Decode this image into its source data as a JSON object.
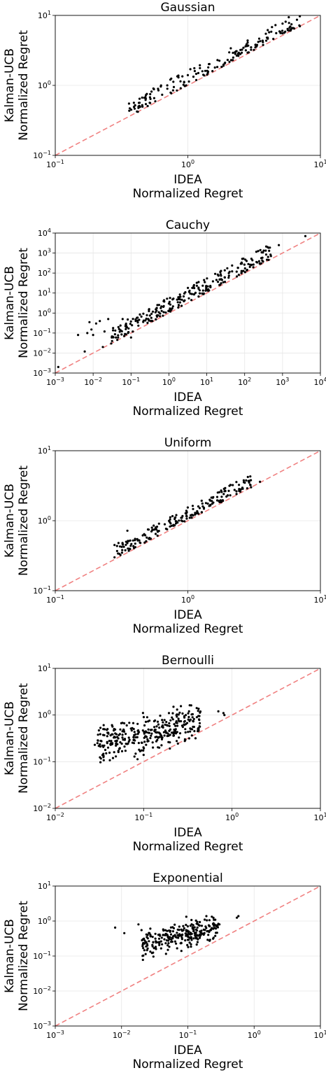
{
  "colors": {
    "diagonal": "#f08080",
    "points": "#000000",
    "grid": "#e6e6e6"
  },
  "chart_data": [
    {
      "type": "scatter",
      "title": "Gaussian",
      "xlabel_line1": "IDEA",
      "xlabel_line2": "Normalized Regret",
      "ylabel_line1": "Kalman-UCB",
      "ylabel_line2": "Normalized Regret",
      "xscale": "log",
      "yscale": "log",
      "xlim": [
        0.1,
        10
      ],
      "ylim": [
        0.1,
        10
      ],
      "xticks": [
        {
          "base": "10",
          "exp": "−1"
        },
        {
          "base": "10",
          "exp": "0"
        },
        {
          "base": "10",
          "exp": "1"
        }
      ],
      "yticks": [
        {
          "base": "10",
          "exp": "−1"
        },
        {
          "base": "10",
          "exp": "0"
        },
        {
          "base": "10",
          "exp": "1"
        }
      ],
      "grid": true,
      "reference_line": "y = x",
      "cloud": {
        "x_range": [
          0.36,
          7.0
        ],
        "ratio_low": 1.02,
        "ratio_high": 1.65,
        "count": 170
      },
      "points": [
        [
          0.36,
          0.55
        ],
        [
          0.42,
          0.42
        ],
        [
          0.4,
          0.52
        ],
        [
          0.48,
          0.62
        ],
        [
          0.52,
          0.75
        ],
        [
          0.6,
          0.85
        ],
        [
          0.7,
          1.0
        ],
        [
          0.75,
          1.25
        ],
        [
          0.85,
          1.3
        ],
        [
          1.0,
          1.4
        ],
        [
          1.2,
          1.5
        ],
        [
          1.6,
          1.8
        ],
        [
          2.2,
          2.5
        ],
        [
          3.0,
          3.5
        ],
        [
          4.0,
          4.8
        ],
        [
          5.0,
          5.6
        ],
        [
          6.0,
          6.3
        ],
        [
          7.0,
          7.0
        ]
      ]
    },
    {
      "type": "scatter",
      "title": "Cauchy",
      "xlabel_line1": "IDEA",
      "xlabel_line2": "Normalized Regret",
      "ylabel_line1": "Kalman-UCB",
      "ylabel_line2": "Normalized Regret",
      "xscale": "log",
      "yscale": "log",
      "xlim": [
        0.001,
        10000
      ],
      "ylim": [
        0.001,
        10000
      ],
      "xticks": [
        {
          "base": "10",
          "exp": "−3"
        },
        {
          "base": "10",
          "exp": "−2"
        },
        {
          "base": "10",
          "exp": "−1"
        },
        {
          "base": "10",
          "exp": "0"
        },
        {
          "base": "10",
          "exp": "1"
        },
        {
          "base": "10",
          "exp": "2"
        },
        {
          "base": "10",
          "exp": "3"
        },
        {
          "base": "10",
          "exp": "4"
        }
      ],
      "yticks": [
        {
          "base": "10",
          "exp": "−3"
        },
        {
          "base": "10",
          "exp": "−2"
        },
        {
          "base": "10",
          "exp": "−1"
        },
        {
          "base": "10",
          "exp": "0"
        },
        {
          "base": "10",
          "exp": "1"
        },
        {
          "base": "10",
          "exp": "2"
        },
        {
          "base": "10",
          "exp": "3"
        },
        {
          "base": "10",
          "exp": "4"
        }
      ],
      "grid": true,
      "reference_line": "y = x",
      "cloud": {
        "x_range": [
          0.03,
          500
        ],
        "ratio_low": 1.05,
        "ratio_high": 6.0,
        "count": 260
      },
      "points": [
        [
          0.0012,
          0.002
        ],
        [
          0.004,
          0.08
        ],
        [
          0.006,
          0.012
        ],
        [
          0.007,
          0.1
        ],
        [
          0.008,
          0.35
        ],
        [
          0.009,
          0.15
        ],
        [
          0.01,
          0.08
        ],
        [
          0.012,
          0.3
        ],
        [
          0.015,
          0.4
        ],
        [
          0.018,
          0.02
        ],
        [
          0.02,
          0.12
        ],
        [
          0.025,
          0.5
        ],
        [
          0.03,
          0.03
        ],
        [
          0.04,
          0.06
        ],
        [
          0.06,
          0.5
        ],
        [
          0.1,
          0.06
        ],
        [
          1.0,
          3.0
        ],
        [
          30,
          60
        ],
        [
          400,
          2000
        ],
        [
          800,
          2500
        ],
        [
          4000,
          7000
        ]
      ]
    },
    {
      "type": "scatter",
      "title": "Uniform",
      "xlabel_line1": "IDEA",
      "xlabel_line2": "Normalized Regret",
      "ylabel_line1": "Kalman-UCB",
      "ylabel_line2": "Normalized Regret",
      "xscale": "log",
      "yscale": "log",
      "xlim": [
        0.1,
        10
      ],
      "ylim": [
        0.1,
        10
      ],
      "xticks": [
        {
          "base": "10",
          "exp": "−1"
        },
        {
          "base": "10",
          "exp": "0"
        },
        {
          "base": "10",
          "exp": "1"
        }
      ],
      "yticks": [
        {
          "base": "10",
          "exp": "−1"
        },
        {
          "base": "10",
          "exp": "0"
        },
        {
          "base": "10",
          "exp": "1"
        }
      ],
      "grid": true,
      "reference_line": "y = x",
      "cloud": {
        "x_range": [
          0.28,
          3.0
        ],
        "ratio_low": 1.03,
        "ratio_high": 1.55,
        "count": 190
      },
      "points": [
        [
          0.28,
          0.3
        ],
        [
          0.28,
          0.45
        ],
        [
          0.3,
          0.48
        ],
        [
          0.32,
          0.38
        ],
        [
          0.35,
          0.72
        ],
        [
          0.4,
          0.55
        ],
        [
          0.5,
          0.75
        ],
        [
          0.8,
          1.1
        ],
        [
          1.2,
          1.6
        ],
        [
          1.8,
          2.2
        ],
        [
          2.5,
          2.8
        ],
        [
          3.0,
          3.0
        ],
        [
          3.5,
          3.6
        ]
      ]
    },
    {
      "type": "scatter",
      "title": "Bernoulli",
      "xlabel_line1": "IDEA",
      "xlabel_line2": "Normalized Regret",
      "ylabel_line1": "Kalman-UCB",
      "ylabel_line2": "Normalized Regret",
      "xscale": "log",
      "yscale": "log",
      "xlim": [
        0.01,
        10
      ],
      "ylim": [
        0.01,
        10
      ],
      "xticks": [
        {
          "base": "10",
          "exp": "−2"
        },
        {
          "base": "10",
          "exp": "−1"
        },
        {
          "base": "10",
          "exp": "0"
        },
        {
          "base": "10",
          "exp": "1"
        }
      ],
      "yticks": [
        {
          "base": "10",
          "exp": "−2"
        },
        {
          "base": "10",
          "exp": "−1"
        },
        {
          "base": "10",
          "exp": "0"
        },
        {
          "base": "10",
          "exp": "1"
        }
      ],
      "grid": true,
      "reference_line": "y = x",
      "cloud": {
        "x_range": [
          0.03,
          0.45
        ],
        "y_range": [
          0.15,
          1.1
        ],
        "count": 330
      },
      "points": [
        [
          0.028,
          0.23
        ],
        [
          0.03,
          0.25
        ],
        [
          0.035,
          0.5
        ],
        [
          0.045,
          0.12
        ],
        [
          0.1,
          0.14
        ],
        [
          0.15,
          0.2
        ],
        [
          0.3,
          1.0
        ],
        [
          0.4,
          0.9
        ],
        [
          0.7,
          1.2
        ],
        [
          0.8,
          1.1
        ],
        [
          0.82,
          1.0
        ]
      ]
    },
    {
      "type": "scatter",
      "title": "Exponential",
      "xlabel_line1": "IDEA",
      "xlabel_line2": "Normalized Regret",
      "ylabel_line1": "Kalman-UCB",
      "ylabel_line2": "Normalized Regret",
      "xscale": "log",
      "yscale": "log",
      "xlim": [
        0.001,
        10
      ],
      "ylim": [
        0.001,
        10
      ],
      "xticks": [
        {
          "base": "10",
          "exp": "−3"
        },
        {
          "base": "10",
          "exp": "−2"
        },
        {
          "base": "10",
          "exp": "−1"
        },
        {
          "base": "10",
          "exp": "0"
        },
        {
          "base": "10",
          "exp": "1"
        }
      ],
      "yticks": [
        {
          "base": "10",
          "exp": "−3"
        },
        {
          "base": "10",
          "exp": "−2"
        },
        {
          "base": "10",
          "exp": "−1"
        },
        {
          "base": "10",
          "exp": "0"
        },
        {
          "base": "10",
          "exp": "1"
        }
      ],
      "grid": true,
      "reference_line": "y = x",
      "cloud": {
        "x_range": [
          0.02,
          0.3
        ],
        "y_range": [
          0.15,
          1.0
        ],
        "count": 260
      },
      "points": [
        [
          0.008,
          0.65
        ],
        [
          0.011,
          0.45
        ],
        [
          0.018,
          0.8
        ],
        [
          0.02,
          0.55
        ],
        [
          0.03,
          0.25
        ],
        [
          0.05,
          0.15
        ],
        [
          0.08,
          0.14
        ],
        [
          0.3,
          0.8
        ],
        [
          0.55,
          1.25
        ],
        [
          0.58,
          1.38
        ]
      ]
    }
  ]
}
